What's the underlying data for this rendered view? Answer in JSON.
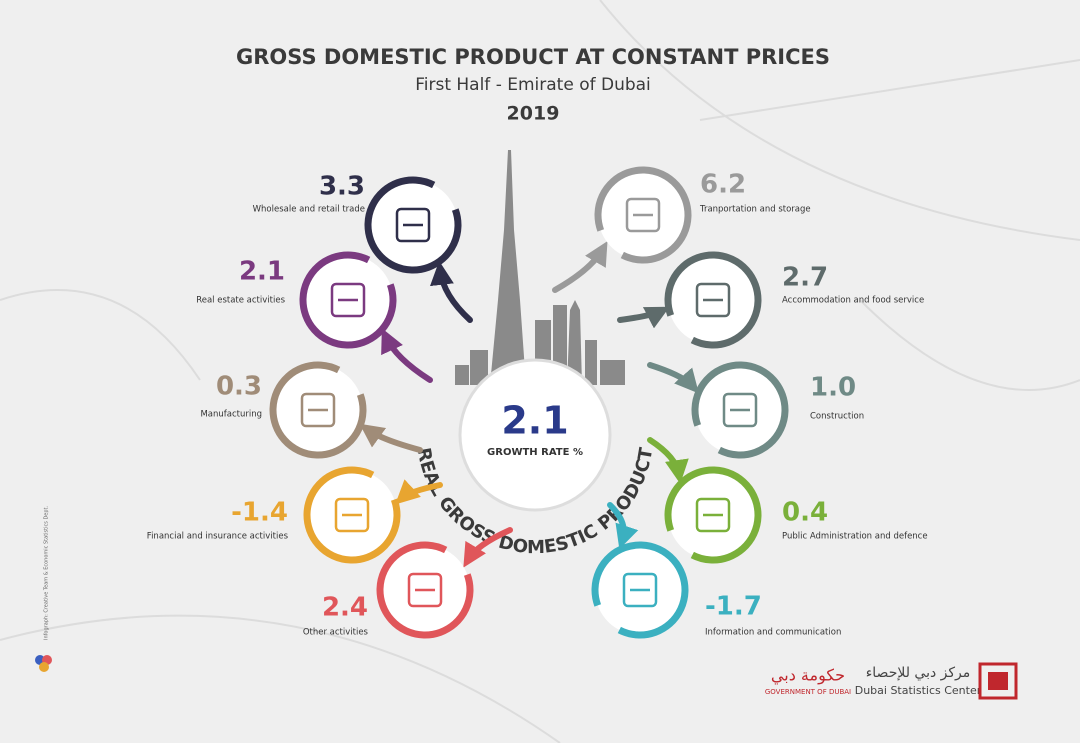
{
  "header": {
    "title": "GROSS DOMESTIC PRODUCT AT CONSTANT PRICES",
    "subtitle": "First Half - Emirate of Dubai",
    "year": "2019"
  },
  "center": {
    "value": "2.1",
    "label": "GROWTH RATE %",
    "arc_text": "REAL GROSS DOMESTIC PRODUCT"
  },
  "sectors": [
    {
      "value": "3.3",
      "label": "Wholesale and retail trade",
      "color": "#2f2f4a"
    },
    {
      "value": "2.1",
      "label": "Real estate activities",
      "color": "#7b3a80"
    },
    {
      "value": "0.3",
      "label": "Manufacturing",
      "color": "#a08c78"
    },
    {
      "value": "-1.4",
      "label": "Financial and insurance activities",
      "color": "#e8a530"
    },
    {
      "value": "2.4",
      "label": "Other activities",
      "color": "#e0565a"
    },
    {
      "value": "6.2",
      "label": "Tranportation and storage",
      "color": "#9a9a9a"
    },
    {
      "value": "2.7",
      "label": "Accommodation and food service",
      "color": "#5e6b6b"
    },
    {
      "value": "1.0",
      "label": "Construction",
      "color": "#6f8a86"
    },
    {
      "value": "0.4",
      "label": "Public Administration and defence",
      "color": "#7ab03a"
    },
    {
      "value": "-1.7",
      "label": "Information and communication",
      "color": "#3bb0c0"
    }
  ],
  "footer": {
    "gov_arabic": "حكومة دبي",
    "gov": "GOVERNMENT OF DUBAI",
    "dsc_arabic": "مركز دبي للإحصاء",
    "dsc": "Dubai Statistics Center",
    "credit": "Infograph: Creative Team & Economic Statistics Dept."
  }
}
